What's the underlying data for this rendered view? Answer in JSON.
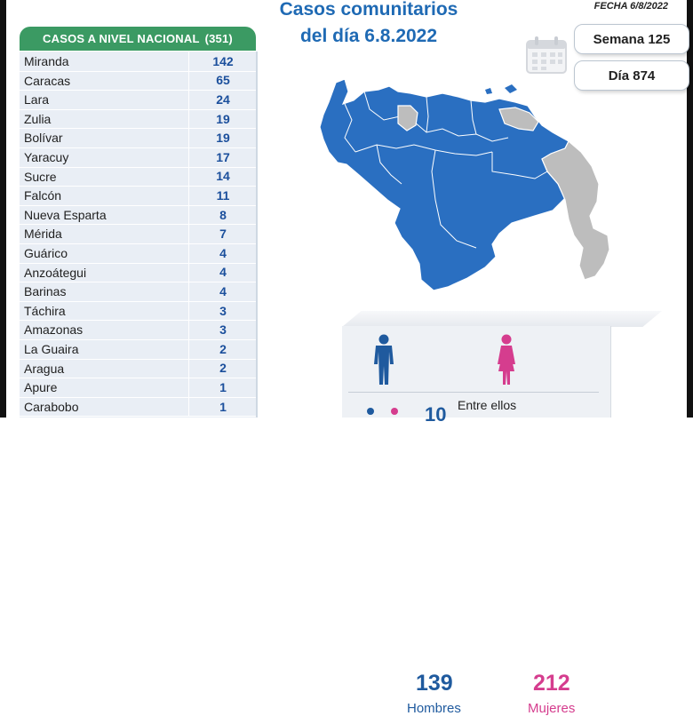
{
  "title": {
    "line1": "Casos comunitarios",
    "line2": "del día 6.8.2022"
  },
  "date_label": "FECHA 6/8/2022",
  "week_badge": "Semana 125",
  "day_badge": "Día 874",
  "table": {
    "header": "CASOS A NIVEL NACIONAL",
    "total": "(351)",
    "rows": [
      {
        "name": "Miranda",
        "value": "142"
      },
      {
        "name": "Caracas",
        "value": "65"
      },
      {
        "name": "Lara",
        "value": "24"
      },
      {
        "name": "Zulia",
        "value": "19"
      },
      {
        "name": "Bolívar",
        "value": "19"
      },
      {
        "name": "Yaracuy",
        "value": "17"
      },
      {
        "name": "Sucre",
        "value": "14"
      },
      {
        "name": "Falcón",
        "value": "11"
      },
      {
        "name": "Nueva Esparta",
        "value": "8"
      },
      {
        "name": "Mérida",
        "value": "7"
      },
      {
        "name": "Guárico",
        "value": "4"
      },
      {
        "name": "Anzoátegui",
        "value": "4"
      },
      {
        "name": "Barinas",
        "value": "4"
      },
      {
        "name": "Táchira",
        "value": "3"
      },
      {
        "name": "Amazonas",
        "value": "3"
      },
      {
        "name": "La Guaira",
        "value": "2"
      },
      {
        "name": "Aragua",
        "value": "2"
      },
      {
        "name": "Apure",
        "value": "1"
      },
      {
        "name": "Carabobo",
        "value": "1"
      }
    ]
  },
  "gender": {
    "men_count": "139",
    "men_label": "Hombres",
    "women_count": "212",
    "women_label": "Mujeres",
    "extra_label": "Entre ellos",
    "extra_count_partial": "10"
  },
  "colors": {
    "header_green": "#3b9a63",
    "title_blue": "#1f6ab4",
    "map_blue": "#2a6fc1",
    "map_gray": "#bdbdbd",
    "men_blue": "#1f5a9e",
    "women_pink": "#d53d8e"
  },
  "icons": [
    "calendar-icon",
    "man-icon",
    "woman-icon"
  ]
}
